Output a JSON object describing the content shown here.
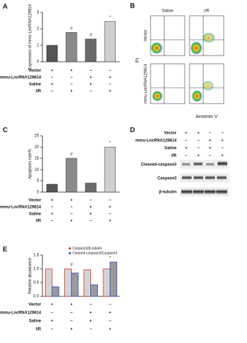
{
  "chart_data": [
    {
      "type": "bar",
      "panel": "A",
      "y_label": "Expression of mmu-LncRNA129814",
      "values": [
        1.0,
        1.78,
        1.38,
        2.45
      ],
      "colors": [
        "#555555",
        "#8a8a8a",
        "#6a6a6a",
        "#cfcfcf"
      ],
      "annotations": [
        null,
        "#",
        "#",
        "*"
      ],
      "ylim": [
        0,
        3
      ],
      "yticks": [
        0,
        1,
        2,
        3
      ],
      "conditions": [
        {
          "label": "Vector",
          "signs": [
            "+",
            "+",
            "−",
            "−"
          ]
        },
        {
          "label": "mmu-LncRNA129814",
          "signs": [
            "−",
            "−",
            "+",
            "+"
          ]
        },
        {
          "label": "Saline",
          "signs": [
            "+",
            "−",
            "+",
            "−"
          ]
        },
        {
          "label": "I/R",
          "signs": [
            "−",
            "+",
            "−",
            "+"
          ]
        }
      ]
    },
    {
      "type": "bar",
      "panel": "C",
      "y_label": "Apoptosis rate%",
      "values": [
        3.5,
        15,
        4,
        20
      ],
      "colors": [
        "#555555",
        "#8a8a8a",
        "#6a6a6a",
        "#cfcfcf"
      ],
      "annotations": [
        null,
        "#",
        null,
        "*"
      ],
      "ylim": [
        0,
        25
      ],
      "yticks": [
        0,
        5,
        10,
        15,
        20,
        25
      ],
      "conditions": [
        {
          "label": "Vector",
          "signs": [
            "+",
            "+",
            "−",
            "−"
          ]
        },
        {
          "label": "mmu-LncRNA129814",
          "signs": [
            "−",
            "−",
            "+",
            "+"
          ]
        },
        {
          "label": "Saline",
          "signs": [
            "+",
            "−",
            "+",
            "−"
          ]
        },
        {
          "label": "I/R",
          "signs": [
            "−",
            "+",
            "−",
            "+"
          ]
        }
      ]
    },
    {
      "type": "grouped_bar",
      "panel": "E",
      "y_label": "Relative abundance",
      "series": [
        {
          "name": "Caspase3/β-tubulin",
          "color": "#e02020",
          "values": [
            1.0,
            1.0,
            0.97,
            1.0
          ]
        },
        {
          "name": "Cleaved-caspase3/Caspase3",
          "color": "#2040d0",
          "values": [
            0.35,
            0.85,
            0.42,
            1.25
          ]
        }
      ],
      "annotations": [
        null,
        "#",
        null,
        "*"
      ],
      "ylim": [
        0,
        1.5
      ],
      "yticks": [
        {
          "value": 0,
          "label": "0.0"
        },
        {
          "value": 0.5,
          "label": "0.5"
        },
        {
          "value": 1,
          "label": "1.0"
        },
        {
          "value": 1.5,
          "label": "1.5"
        }
      ],
      "conditions": [
        {
          "label": "Vector",
          "signs": [
            "+",
            "+",
            "−",
            "−"
          ]
        },
        {
          "label": "mmu-LncRNA129814",
          "signs": [
            "−",
            "−",
            "+",
            "+"
          ]
        },
        {
          "label": "Saline",
          "signs": [
            "+",
            "−",
            "+",
            "−"
          ]
        },
        {
          "label": "I/R",
          "signs": [
            "−",
            "+",
            "−",
            "+"
          ]
        }
      ]
    }
  ],
  "flow_panel": {
    "panel": "B",
    "columns": [
      "Saline",
      "I/R"
    ],
    "rows": [
      "Vector",
      "mmu-LncRNA129814"
    ],
    "y_label": "PI",
    "x_label": "Annexin V"
  },
  "blot_panel": {
    "panel": "D",
    "conditions": [
      {
        "label": "Vector",
        "signs": [
          "+",
          "+",
          "−",
          "−"
        ]
      },
      {
        "label": "mmu-LncRNA129814",
        "signs": [
          "−",
          "−",
          "+",
          "+"
        ]
      },
      {
        "label": "Saline",
        "signs": [
          "+",
          "−",
          "+",
          "−"
        ]
      },
      {
        "label": "I/R",
        "signs": [
          "−",
          "+",
          "−",
          "+"
        ]
      }
    ],
    "bands": [
      "Cleaved-caspase3",
      "Caspase3",
      "β-tubulin"
    ]
  }
}
